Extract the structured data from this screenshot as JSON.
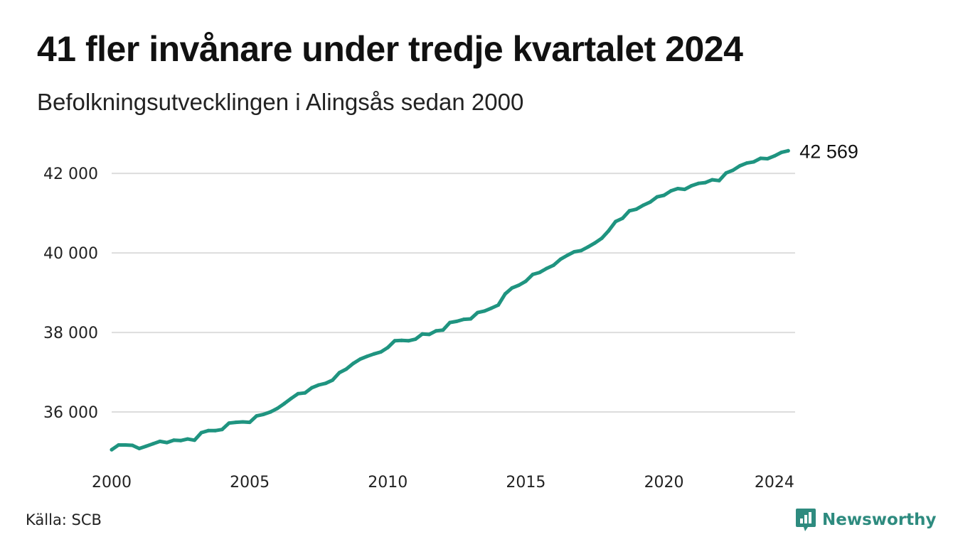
{
  "title": "41 fler invånare under tredje kvartalet 2024",
  "subtitle": "Befolkningsutvecklingen i Alingsås sedan 2000",
  "source": "Källa: SCB",
  "brand": {
    "name": "Newsworthy",
    "icon": "newsworthy-logo-icon",
    "color": "#2e8b7f"
  },
  "chart_data": {
    "type": "line",
    "title": "41 fler invånare under tredje kvartalet 2024",
    "subtitle": "Befolkningsutvecklingen i Alingsås sedan 2000",
    "xlabel": "",
    "ylabel": "",
    "x_ticks": [
      "2000",
      "2005",
      "2010",
      "2015",
      "2020",
      "2024"
    ],
    "x_tick_values": [
      2000,
      2005,
      2010,
      2015,
      2020,
      2024
    ],
    "y_ticks": [
      36000,
      38000,
      40000,
      42000
    ],
    "y_tick_labels": [
      "36 000",
      "38 000",
      "40 000",
      "42 000"
    ],
    "xlim": [
      2000,
      2024.75
    ],
    "ylim": [
      35000,
      42700
    ],
    "grid": "horizontal",
    "line_color": "#1f9480",
    "end_label": "42 569",
    "series": [
      {
        "x": [
          2000.0,
          2000.25,
          2000.5,
          2000.75,
          2001.0,
          2001.25,
          2001.5,
          2001.75,
          2002.0,
          2002.25,
          2002.5,
          2002.75,
          2003.0,
          2003.25,
          2003.5,
          2003.75,
          2004.0,
          2004.25,
          2004.5,
          2004.75,
          2005.0,
          2005.25,
          2005.5,
          2005.75,
          2006.0,
          2006.25,
          2006.5,
          2006.75,
          2007.0,
          2007.25,
          2007.5,
          2007.75,
          2008.0,
          2008.25,
          2008.5,
          2008.75,
          2009.0,
          2009.25,
          2009.5,
          2009.75,
          2010.0,
          2010.25,
          2010.5,
          2010.75,
          2011.0,
          2011.25,
          2011.5,
          2011.75,
          2012.0,
          2012.25,
          2012.5,
          2012.75,
          2013.0,
          2013.25,
          2013.5,
          2013.75,
          2014.0,
          2014.25,
          2014.5,
          2014.75,
          2015.0,
          2015.25,
          2015.5,
          2015.75,
          2016.0,
          2016.25,
          2016.5,
          2016.75,
          2017.0,
          2017.25,
          2017.5,
          2017.75,
          2018.0,
          2018.25,
          2018.5,
          2018.75,
          2019.0,
          2019.25,
          2019.5,
          2019.75,
          2020.0,
          2020.25,
          2020.5,
          2020.75,
          2021.0,
          2021.25,
          2021.5,
          2021.75,
          2022.0,
          2022.25,
          2022.5,
          2022.75,
          2023.0,
          2023.25,
          2023.5,
          2023.75,
          2024.0,
          2024.25,
          2024.5
        ],
        "values": [
          35050,
          35170,
          35170,
          35160,
          35080,
          35140,
          35200,
          35260,
          35230,
          35290,
          35280,
          35320,
          35290,
          35480,
          35530,
          35530,
          35560,
          35720,
          35740,
          35750,
          35740,
          35900,
          35940,
          36000,
          36090,
          36210,
          36340,
          36460,
          36480,
          36610,
          36680,
          36720,
          36800,
          36990,
          37080,
          37220,
          37330,
          37400,
          37460,
          37510,
          37620,
          37790,
          37800,
          37790,
          37830,
          37960,
          37950,
          38040,
          38060,
          38250,
          38280,
          38330,
          38340,
          38500,
          38540,
          38610,
          38690,
          38970,
          39120,
          39190,
          39290,
          39460,
          39510,
          39610,
          39690,
          39840,
          39940,
          40030,
          40060,
          40150,
          40250,
          40370,
          40560,
          40790,
          40870,
          41060,
          41100,
          41200,
          41280,
          41410,
          41450,
          41560,
          41620,
          41600,
          41690,
          41750,
          41770,
          41840,
          41820,
          42010,
          42080,
          42190,
          42260,
          42290,
          42380,
          42370,
          42440,
          42528,
          42569
        ]
      }
    ]
  }
}
